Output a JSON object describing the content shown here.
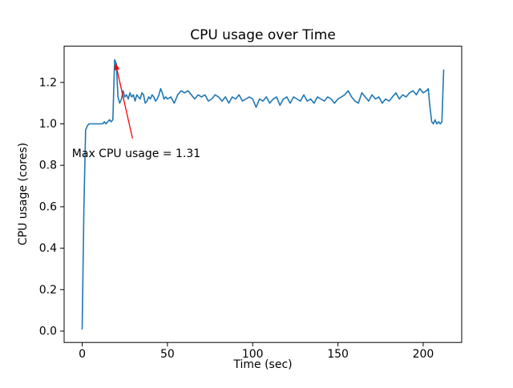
{
  "figure": {
    "background": "#ffffff"
  },
  "chart_data": {
    "type": "line",
    "title": "CPU usage over Time",
    "xlabel": "Time (sec)",
    "ylabel": "CPU usage (cores)",
    "xlim": [
      -10.6,
      222.6
    ],
    "ylim": [
      -0.055,
      1.375
    ],
    "xticks": [
      0,
      50,
      100,
      150,
      200
    ],
    "yticks": [
      0.0,
      0.2,
      0.4,
      0.6,
      0.8,
      1.0,
      1.2
    ],
    "grid": false,
    "legend": "none",
    "line_color": "#1f77b4",
    "series": [
      {
        "name": "cpu_usage",
        "points": [
          [
            0,
            0.01
          ],
          [
            1,
            0.6
          ],
          [
            2,
            0.97
          ],
          [
            3,
            0.99
          ],
          [
            4,
            1.0
          ],
          [
            6,
            1.0
          ],
          [
            8,
            1.0
          ],
          [
            10,
            1.0
          ],
          [
            12,
            1.0
          ],
          [
            13,
            1.01
          ],
          [
            14,
            1.0
          ],
          [
            15,
            1.01
          ],
          [
            16,
            1.02
          ],
          [
            17,
            1.01
          ],
          [
            18,
            1.02
          ],
          [
            19,
            1.31
          ],
          [
            20,
            1.29
          ],
          [
            21,
            1.13
          ],
          [
            22,
            1.1
          ],
          [
            23,
            1.12
          ],
          [
            24,
            1.16
          ],
          [
            25,
            1.13
          ],
          [
            26,
            1.14
          ],
          [
            27,
            1.12
          ],
          [
            28,
            1.15
          ],
          [
            29,
            1.13
          ],
          [
            30,
            1.14
          ],
          [
            31,
            1.11
          ],
          [
            32,
            1.14
          ],
          [
            33,
            1.13
          ],
          [
            34,
            1.12
          ],
          [
            35,
            1.15
          ],
          [
            36,
            1.14
          ],
          [
            37,
            1.1
          ],
          [
            38,
            1.11
          ],
          [
            39,
            1.13
          ],
          [
            40,
            1.12
          ],
          [
            41,
            1.14
          ],
          [
            42,
            1.13
          ],
          [
            43,
            1.11
          ],
          [
            44,
            1.12
          ],
          [
            45,
            1.14
          ],
          [
            46,
            1.17
          ],
          [
            47,
            1.15
          ],
          [
            48,
            1.12
          ],
          [
            49,
            1.13
          ],
          [
            50,
            1.12
          ],
          [
            52,
            1.13
          ],
          [
            54,
            1.1
          ],
          [
            56,
            1.14
          ],
          [
            58,
            1.16
          ],
          [
            60,
            1.15
          ],
          [
            62,
            1.16
          ],
          [
            64,
            1.14
          ],
          [
            66,
            1.12
          ],
          [
            68,
            1.14
          ],
          [
            70,
            1.13
          ],
          [
            72,
            1.14
          ],
          [
            74,
            1.11
          ],
          [
            76,
            1.12
          ],
          [
            78,
            1.14
          ],
          [
            80,
            1.13
          ],
          [
            82,
            1.11
          ],
          [
            84,
            1.13
          ],
          [
            86,
            1.1
          ],
          [
            88,
            1.13
          ],
          [
            90,
            1.12
          ],
          [
            92,
            1.14
          ],
          [
            94,
            1.11
          ],
          [
            96,
            1.12
          ],
          [
            98,
            1.13
          ],
          [
            100,
            1.12
          ],
          [
            102,
            1.08
          ],
          [
            104,
            1.12
          ],
          [
            106,
            1.11
          ],
          [
            108,
            1.13
          ],
          [
            110,
            1.1
          ],
          [
            112,
            1.12
          ],
          [
            114,
            1.13
          ],
          [
            116,
            1.09
          ],
          [
            118,
            1.12
          ],
          [
            120,
            1.13
          ],
          [
            122,
            1.1
          ],
          [
            124,
            1.13
          ],
          [
            126,
            1.12
          ],
          [
            128,
            1.11
          ],
          [
            130,
            1.14
          ],
          [
            132,
            1.11
          ],
          [
            134,
            1.12
          ],
          [
            136,
            1.1
          ],
          [
            138,
            1.13
          ],
          [
            140,
            1.12
          ],
          [
            142,
            1.11
          ],
          [
            144,
            1.13
          ],
          [
            146,
            1.12
          ],
          [
            148,
            1.1
          ],
          [
            150,
            1.12
          ],
          [
            152,
            1.13
          ],
          [
            154,
            1.14
          ],
          [
            156,
            1.16
          ],
          [
            158,
            1.13
          ],
          [
            160,
            1.11
          ],
          [
            162,
            1.1
          ],
          [
            164,
            1.15
          ],
          [
            166,
            1.13
          ],
          [
            168,
            1.11
          ],
          [
            170,
            1.14
          ],
          [
            172,
            1.12
          ],
          [
            174,
            1.13
          ],
          [
            176,
            1.1
          ],
          [
            178,
            1.12
          ],
          [
            180,
            1.11
          ],
          [
            182,
            1.13
          ],
          [
            184,
            1.15
          ],
          [
            186,
            1.12
          ],
          [
            188,
            1.14
          ],
          [
            190,
            1.13
          ],
          [
            192,
            1.15
          ],
          [
            194,
            1.16
          ],
          [
            196,
            1.14
          ],
          [
            198,
            1.17
          ],
          [
            200,
            1.15
          ],
          [
            202,
            1.16
          ],
          [
            203,
            1.17
          ],
          [
            204,
            1.08
          ],
          [
            205,
            1.01
          ],
          [
            206,
            1.0
          ],
          [
            207,
            1.02
          ],
          [
            208,
            1.0
          ],
          [
            209,
            1.01
          ],
          [
            210,
            1.0
          ],
          [
            211,
            1.01
          ],
          [
            212,
            1.26
          ]
        ]
      }
    ],
    "annotation": {
      "text": "Max CPU usage = 1.31",
      "color": "#ff0000",
      "text_xy": [
        -6,
        0.84
      ],
      "arrow_from": [
        29.5,
        0.93
      ],
      "arrow_to": [
        19.5,
        1.295
      ]
    }
  }
}
